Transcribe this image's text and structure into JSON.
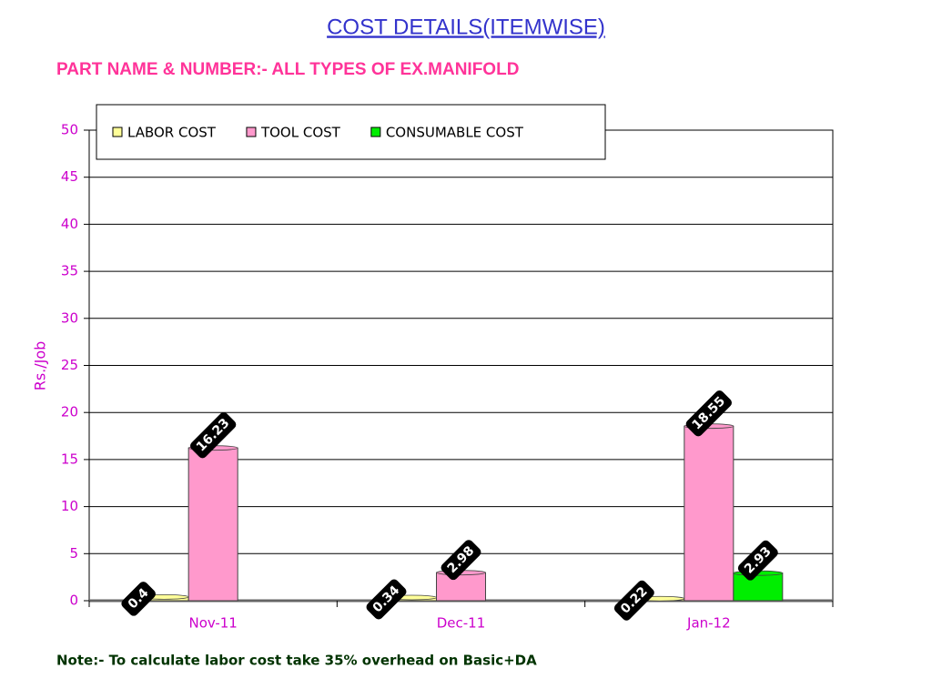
{
  "chart_data": {
    "type": "bar",
    "title": "COST DETAILS(ITEMWISE)",
    "subtitle": "PART NAME & NUMBER:- ALL TYPES OF EX.MANIFOLD",
    "y_label": "Rs./Job",
    "note": "Note:- To calculate labor cost take 35% overhead on Basic+DA",
    "categories": [
      "Nov-11",
      "Dec-11",
      "Jan-12"
    ],
    "series": [
      {
        "name": "LABOR COST",
        "color": "#ffff99",
        "values": [
          0.4,
          0.34,
          0.22
        ]
      },
      {
        "name": "TOOL COST",
        "color": "#ff99cc",
        "values": [
          16.23,
          2.98,
          18.55
        ]
      },
      {
        "name": "CONSUMABLE COST",
        "color": "#00ee00",
        "values": [
          null,
          null,
          2.93
        ]
      }
    ],
    "ylim": [
      0,
      50
    ],
    "yticks": [
      0,
      5,
      10,
      15,
      20,
      25,
      30,
      35,
      40,
      45,
      50
    ],
    "grid": true
  }
}
